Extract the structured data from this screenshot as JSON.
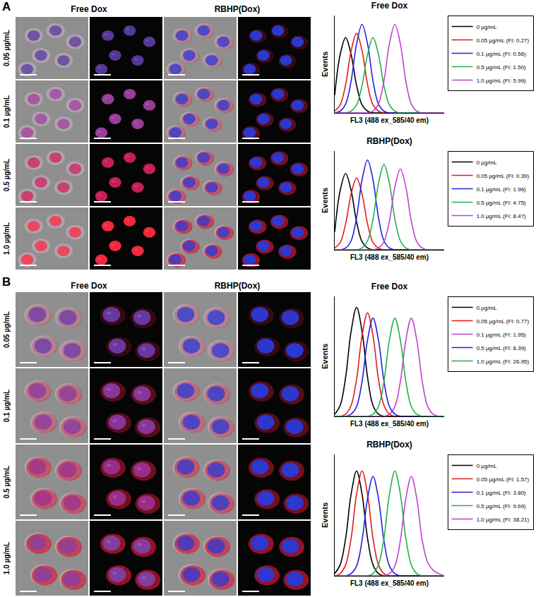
{
  "image_panels": [
    {
      "label": "A",
      "columns": [
        "Free Dox",
        "RBHP(Dox)"
      ],
      "rows": [
        "0.05 µg/mL",
        "0.1 µg/mL",
        "0.5 µg/mL",
        "1.0 µg/mL"
      ]
    },
    {
      "label": "B",
      "columns": [
        "Free Dox",
        "RBHP(Dox)"
      ],
      "rows": [
        "0.05 µg/mL",
        "0.1 µg/mL",
        "0.5 µg/mL",
        "1.0 µg/mL"
      ]
    }
  ],
  "chart_data": [
    {
      "type": "line",
      "title": "Free Dox",
      "x_label": "FL3 (488 ex_585/40 em)",
      "y_label": "Events",
      "x": [
        0,
        5,
        10,
        15,
        20,
        25,
        30,
        35,
        40,
        45,
        50,
        55,
        60,
        65,
        70,
        75,
        80,
        85,
        90,
        95,
        100
      ],
      "xlim": [
        0,
        100
      ],
      "ylim": [
        0,
        110
      ],
      "tick_labels": false,
      "grid": false,
      "legend": "right",
      "series": [
        {
          "name": "0 µg/mL",
          "color": "#000000",
          "values": [
            20,
            66,
            85,
            66,
            31,
            9,
            2,
            0,
            0,
            0,
            0,
            0,
            0,
            0,
            0,
            0,
            0,
            0,
            0,
            0,
            0
          ]
        },
        {
          "name": "0.05 µg/mL (FI: 0.27)",
          "color": "#e41a1c",
          "values": [
            2,
            9,
            32,
            70,
            90,
            70,
            32,
            9,
            2,
            0,
            0,
            0,
            0,
            0,
            0,
            0,
            0,
            0,
            0,
            0,
            0
          ]
        },
        {
          "name": "0.1 µg/mL (FI: 0.56)",
          "color": "#2020e0",
          "values": [
            0,
            2,
            10,
            36,
            78,
            100,
            78,
            36,
            10,
            2,
            0,
            0,
            0,
            0,
            0,
            0,
            0,
            0,
            0,
            0,
            0
          ]
        },
        {
          "name": "0.5 µg/mL (FI: 1.50)",
          "color": "#22b14c",
          "values": [
            0,
            0,
            0,
            2,
            9,
            31,
            66,
            85,
            66,
            31,
            9,
            2,
            0,
            0,
            0,
            0,
            0,
            0,
            0,
            0,
            0
          ]
        },
        {
          "name": "1.0 µg/mL (FI: 5.99)",
          "color": "#c040d0",
          "values": [
            0,
            0,
            0,
            0,
            0,
            0,
            0,
            2,
            10,
            36,
            78,
            100,
            78,
            36,
            10,
            2,
            0,
            0,
            0,
            0,
            0
          ]
        }
      ]
    },
    {
      "type": "line",
      "title": "RBHP(Dox)",
      "x_label": "FL3 (488 ex_585/40 em)",
      "y_label": "Events",
      "x": [
        0,
        5,
        10,
        15,
        20,
        25,
        30,
        35,
        40,
        45,
        50,
        55,
        60,
        65,
        70,
        75,
        80,
        85,
        90,
        95,
        100
      ],
      "xlim": [
        0,
        100
      ],
      "ylim": [
        0,
        110
      ],
      "tick_labels": false,
      "grid": false,
      "legend": "right",
      "series": [
        {
          "name": "0 µg/mL",
          "color": "#000000",
          "values": [
            20,
            66,
            85,
            66,
            31,
            9,
            2,
            0,
            0,
            0,
            0,
            0,
            0,
            0,
            0,
            0,
            0,
            0,
            0,
            0,
            0
          ]
        },
        {
          "name": "0.05 µg/mL (FI: 0.39)",
          "color": "#e41a1c",
          "values": [
            2,
            8,
            29,
            62,
            80,
            62,
            29,
            8,
            2,
            0,
            0,
            0,
            0,
            0,
            0,
            0,
            0,
            0,
            0,
            0,
            0
          ]
        },
        {
          "name": "0.1 µg/mL (FI: 1.96)",
          "color": "#2020e0",
          "values": [
            0,
            0,
            2,
            10,
            36,
            78,
            100,
            78,
            36,
            10,
            2,
            0,
            0,
            0,
            0,
            0,
            0,
            0,
            0,
            0,
            0
          ]
        },
        {
          "name": "0.5 µg/mL (FI: 4.75)",
          "color": "#22b14c",
          "values": [
            0,
            0,
            0,
            0,
            0,
            2,
            10,
            34,
            74,
            95,
            74,
            34,
            10,
            2,
            0,
            0,
            0,
            0,
            0,
            0,
            0
          ]
        },
        {
          "name": "1.0 µg/mL (FI: 8.47)",
          "color": "#c040d0",
          "values": [
            0,
            0,
            0,
            0,
            0,
            0,
            0,
            0,
            2,
            9,
            32,
            70,
            90,
            70,
            32,
            9,
            2,
            0,
            0,
            0,
            0
          ]
        }
      ]
    },
    {
      "type": "line",
      "title": "Free Dox",
      "x_label": "FL3 (488 ex_585/40 em)",
      "y_label": "Events",
      "x": [
        0,
        5,
        10,
        15,
        20,
        25,
        30,
        35,
        40,
        45,
        50,
        55,
        60,
        65,
        70,
        75,
        80,
        85,
        90,
        95,
        100
      ],
      "xlim": [
        0,
        100
      ],
      "ylim": [
        0,
        110
      ],
      "tick_labels": false,
      "grid": false,
      "legend": "right",
      "series": [
        {
          "name": "0 µg/mL",
          "color": "#000000",
          "values": [
            2,
            10,
            36,
            78,
            100,
            78,
            36,
            10,
            2,
            0,
            0,
            0,
            0,
            0,
            0,
            0,
            0,
            0,
            0,
            0,
            0
          ]
        },
        {
          "name": "0.05 µg/mL (FI: 0.77)",
          "color": "#e41a1c",
          "values": [
            0,
            0,
            2,
            10,
            34,
            74,
            95,
            74,
            34,
            10,
            2,
            0,
            0,
            0,
            0,
            0,
            0,
            0,
            0,
            0,
            0
          ]
        },
        {
          "name": "0.1 µg/mL (FI: 1.95)",
          "color": "#c040d0",
          "values": [
            0,
            0,
            0,
            0,
            0,
            0,
            0,
            0,
            0,
            0,
            2,
            9,
            32,
            70,
            90,
            70,
            32,
            9,
            2,
            0,
            0
          ]
        },
        {
          "name": "0.5 µg/mL (FI: 8.39)",
          "color": "#2020e0",
          "values": [
            0,
            0,
            0,
            2,
            9,
            32,
            70,
            90,
            70,
            32,
            9,
            2,
            0,
            0,
            0,
            0,
            0,
            0,
            0,
            0,
            0
          ]
        },
        {
          "name": "1.0 µg/mL (FI: 26.95)",
          "color": "#22b14c",
          "values": [
            0,
            0,
            0,
            0,
            0,
            0,
            0,
            2,
            9,
            32,
            70,
            90,
            70,
            32,
            9,
            2,
            0,
            0,
            0,
            0,
            0
          ]
        }
      ]
    },
    {
      "type": "line",
      "title": "RBHP(Dox)",
      "x_label": "FL3 (488 ex_585/40 em)",
      "y_label": "Events",
      "x": [
        0,
        5,
        10,
        15,
        20,
        25,
        30,
        35,
        40,
        45,
        50,
        55,
        60,
        65,
        70,
        75,
        80,
        85,
        90,
        95,
        100
      ],
      "xlim": [
        0,
        100
      ],
      "ylim": [
        0,
        110
      ],
      "tick_labels": false,
      "grid": false,
      "legend": "right",
      "series": [
        {
          "name": "0 µg/mL",
          "color": "#000000",
          "values": [
            2,
            10,
            34,
            74,
            95,
            74,
            34,
            10,
            2,
            0,
            0,
            0,
            0,
            0,
            0,
            0,
            0,
            0,
            0,
            0,
            0
          ]
        },
        {
          "name": "0.05 µg/mL (FI: 1.57)",
          "color": "#e41a1c",
          "values": [
            0,
            2,
            10,
            34,
            74,
            95,
            74,
            34,
            10,
            2,
            0,
            0,
            0,
            0,
            0,
            0,
            0,
            0,
            0,
            0,
            0
          ]
        },
        {
          "name": "0.1 µg/mL (FI: 3.80)",
          "color": "#2020e0",
          "values": [
            0,
            0,
            0,
            2,
            9,
            32,
            70,
            90,
            70,
            32,
            9,
            2,
            0,
            0,
            0,
            0,
            0,
            0,
            0,
            0,
            0
          ]
        },
        {
          "name": "0.5 µg/mL (FI: 9.69)",
          "color": "#22b14c",
          "values": [
            0,
            0,
            0,
            0,
            0,
            0,
            0,
            2,
            10,
            34,
            74,
            95,
            74,
            34,
            10,
            2,
            0,
            0,
            0,
            0,
            0
          ]
        },
        {
          "name": "1.0 µg/mL (FI: 38.21)",
          "color": "#c040d0",
          "values": [
            0,
            0,
            0,
            0,
            0,
            0,
            0,
            0,
            0,
            0,
            2,
            9,
            32,
            70,
            90,
            70,
            32,
            12,
            5,
            2,
            0
          ]
        }
      ]
    }
  ]
}
